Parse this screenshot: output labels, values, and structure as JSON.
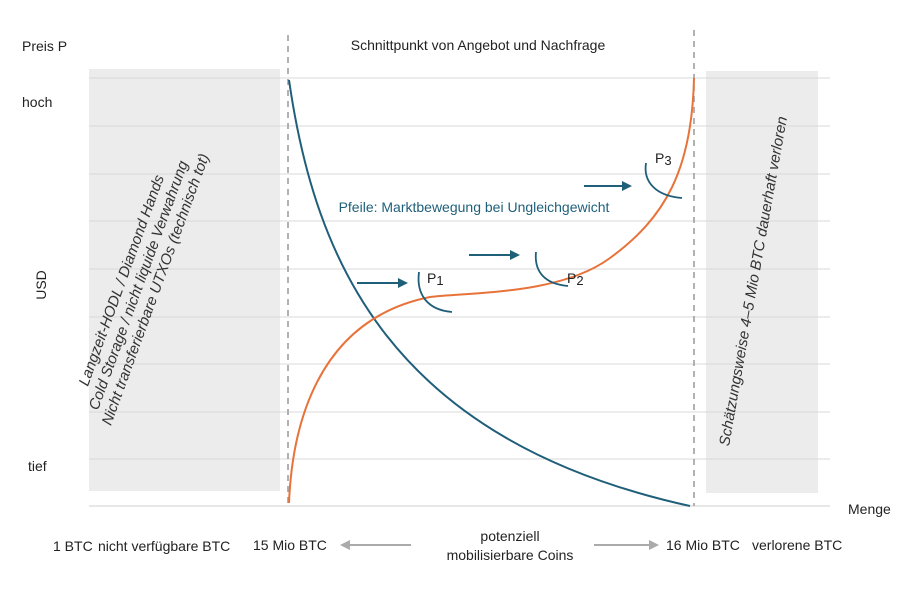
{
  "labels": {
    "y_axis_top": "Preis P",
    "y_high": "hoch",
    "y_unit": "USD",
    "y_low": "tief",
    "x_axis": "Menge",
    "intersection_title": "Schnittpunkt von Angebot und Nachfrage",
    "arrows_note": "Pfeile: Marktbewegung bei Ungleichgewicht",
    "left_box_line1": "Langzeit-HODL / Diamond Hands",
    "left_box_line2": "Cold Storage / nicht liquide Verwahrung",
    "left_box_line3": "Nicht transferierbare UTXOs (technisch tot)",
    "right_box": "Schätzungsweise 4–5 Mio BTC dauerhaft verloren",
    "p1": "P",
    "p1_sub": "1",
    "p2": "P",
    "p2_sub": "2",
    "p3": "P",
    "p3_sub": "3"
  },
  "bottom": {
    "btc_1": "1 BTC",
    "not_available": "nicht verfügbare BTC",
    "btc_15": "15 Mio BTC",
    "mobilizable_line1": "potenziell",
    "mobilizable_line2": "mobilisierbare Coins",
    "btc_16": "16 Mio BTC",
    "lost": "verlorene BTC"
  },
  "colors": {
    "demand_curve": "#1f5f7a",
    "supply_curve": "#e8733a",
    "shaded_region": "#ececec",
    "grid": "#d9d9d9"
  }
}
